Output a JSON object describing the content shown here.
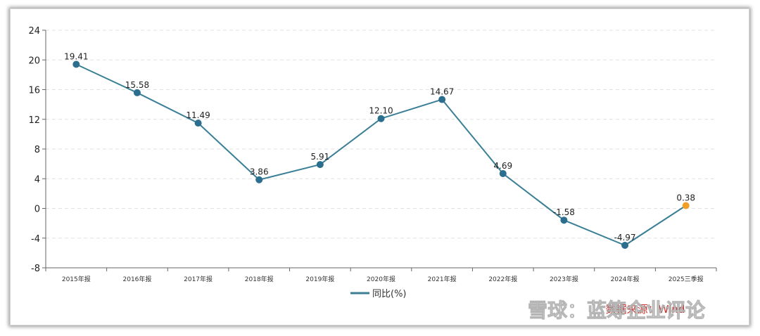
{
  "chart_data": {
    "type": "line",
    "categories": [
      "2015年报",
      "2016年报",
      "2017年报",
      "2018年报",
      "2019年报",
      "2020年报",
      "2021年报",
      "2022年报",
      "2023年报",
      "2024年报",
      "2025三季报"
    ],
    "series": [
      {
        "name": "同比(%)",
        "values": [
          19.41,
          15.58,
          11.49,
          3.86,
          5.91,
          12.1,
          14.67,
          4.69,
          -1.58,
          -4.97,
          0.38
        ],
        "labels": [
          "19.41",
          "15.58",
          "11.49",
          "3.86",
          "5.91",
          "12.10",
          "14.67",
          "4.69",
          "-1.58",
          "-4.97",
          "0.38"
        ]
      }
    ],
    "yticks": [
      "24",
      "20",
      "16",
      "12",
      "8",
      "4",
      "0",
      "-4",
      "-8"
    ],
    "ylim": [
      -8,
      24
    ],
    "grid": true,
    "legend": "bottom-center",
    "line_color": "#3a7f96",
    "marker_color": "#2c6e8e",
    "highlight_color": "#f0a028"
  },
  "source": "数据来源：Wind",
  "watermark": "雪球：蓝筹企业评论"
}
